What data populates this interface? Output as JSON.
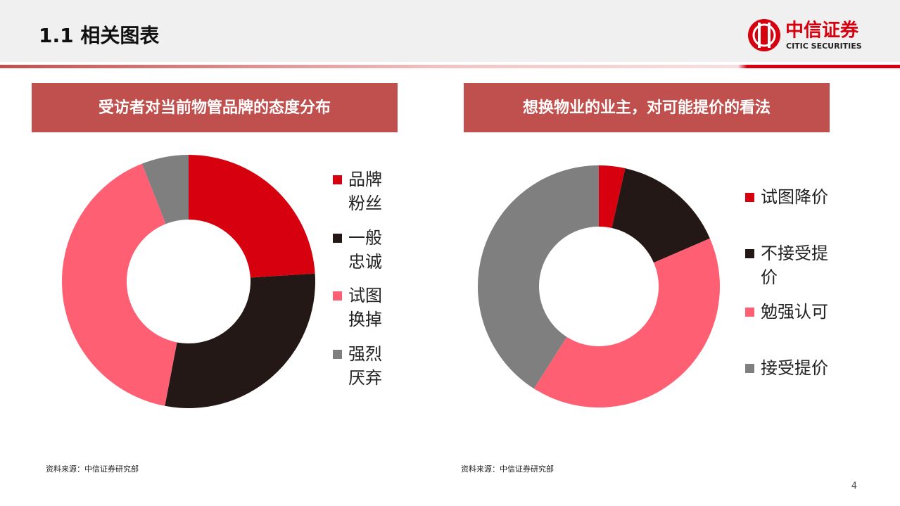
{
  "header": {
    "title": "1.1 相关图表",
    "logo_cn": "中信证券",
    "logo_en": "CITIC SECURITIES"
  },
  "page_number": "4",
  "chart_data": [
    {
      "type": "pie",
      "title": "受访者对当前物管品牌的态度分布",
      "categories": [
        "品牌粉丝",
        "一般忠诚",
        "试图换掉",
        "强烈厌弃"
      ],
      "values": [
        24,
        29,
        41,
        6
      ],
      "colors": [
        "#d7000f",
        "#231815",
        "#ff5f73",
        "#7f7f7f"
      ],
      "source": "资料来源：中信证券研究部"
    },
    {
      "type": "pie",
      "title": "想换物业的业主，对可能提价的看法",
      "categories": [
        "试图降价",
        "不接受提价",
        "勉强认可",
        "接受提价"
      ],
      "values": [
        3.5,
        15,
        40.5,
        41
      ],
      "colors": [
        "#d7000f",
        "#231815",
        "#ff5f73",
        "#7f7f7f"
      ],
      "source": "资料来源：中信证券研究部"
    }
  ]
}
